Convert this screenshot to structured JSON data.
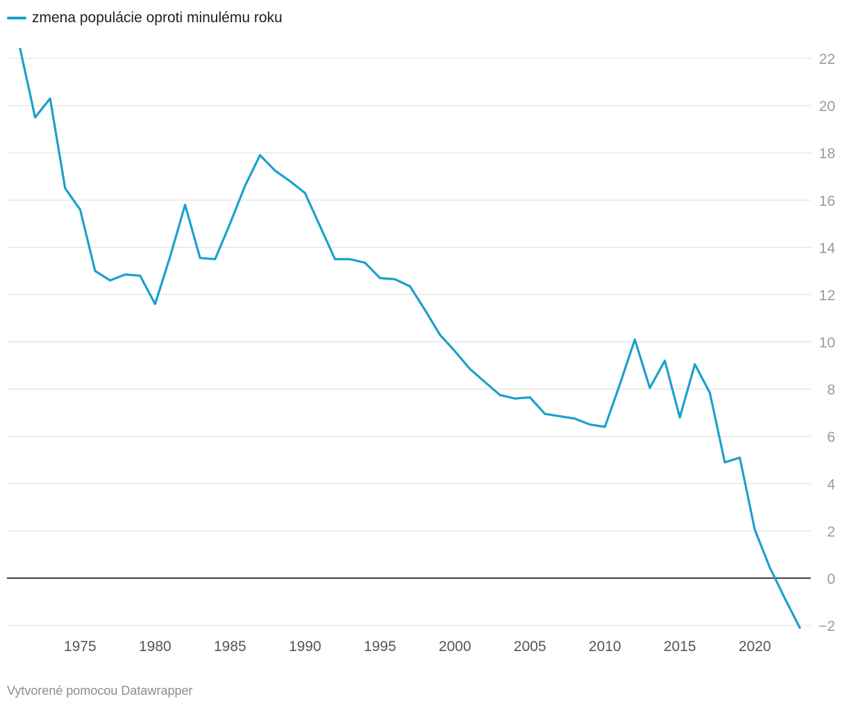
{
  "legend": {
    "label": "zmena populácie oproti minulému roku"
  },
  "footer": {
    "text": "Vytvorené pomocou Datawrapper"
  },
  "colors": {
    "series": "#1aa0cc",
    "grid": "#dcdcdc",
    "zero": "#000000",
    "ytick": "#9a9a9a",
    "xtick": "#555555"
  },
  "chart_data": {
    "type": "line",
    "title": "",
    "xlabel": "",
    "ylabel": "",
    "xlim": [
      1971,
      2023
    ],
    "ylim": [
      -2,
      22
    ],
    "yticks": [
      22,
      20,
      18,
      16,
      14,
      12,
      10,
      8,
      6,
      4,
      2,
      0,
      -2
    ],
    "ytick_labels": [
      "22",
      "20",
      "18",
      "16",
      "14",
      "12",
      "10",
      "8",
      "6",
      "4",
      "2",
      "0",
      "−2"
    ],
    "xticks": [
      1975,
      1980,
      1985,
      1990,
      1995,
      2000,
      2005,
      2010,
      2015,
      2020
    ],
    "xtick_labels": [
      "1975",
      "1980",
      "1985",
      "1990",
      "1995",
      "2000",
      "2005",
      "2010",
      "2015",
      "2020"
    ],
    "series": [
      {
        "name": "zmena populácie oproti minulému roku",
        "x": [
          1971,
          1972,
          1973,
          1974,
          1975,
          1976,
          1977,
          1978,
          1979,
          1980,
          1981,
          1982,
          1983,
          1984,
          1985,
          1986,
          1987,
          1988,
          1989,
          1990,
          1991,
          1992,
          1993,
          1994,
          1995,
          1996,
          1997,
          1998,
          1999,
          2000,
          2001,
          2002,
          2003,
          2004,
          2005,
          2006,
          2007,
          2008,
          2009,
          2010,
          2011,
          2012,
          2013,
          2014,
          2015,
          2016,
          2017,
          2018,
          2019,
          2020,
          2021,
          2022,
          2023
        ],
        "values": [
          22.4,
          19.5,
          20.3,
          16.5,
          15.6,
          13.0,
          12.6,
          12.85,
          12.8,
          11.6,
          13.6,
          15.8,
          13.55,
          13.5,
          15.0,
          16.6,
          17.9,
          17.25,
          16.8,
          16.3,
          14.9,
          13.5,
          13.5,
          13.35,
          12.7,
          12.65,
          12.35,
          11.35,
          10.3,
          9.6,
          8.85,
          8.3,
          7.75,
          7.6,
          7.65,
          6.95,
          6.85,
          6.75,
          6.5,
          6.4,
          8.2,
          10.1,
          8.05,
          9.2,
          6.8,
          9.05,
          7.85,
          4.9,
          5.1,
          2.05,
          0.45,
          -0.85,
          -2.1
        ]
      }
    ]
  }
}
